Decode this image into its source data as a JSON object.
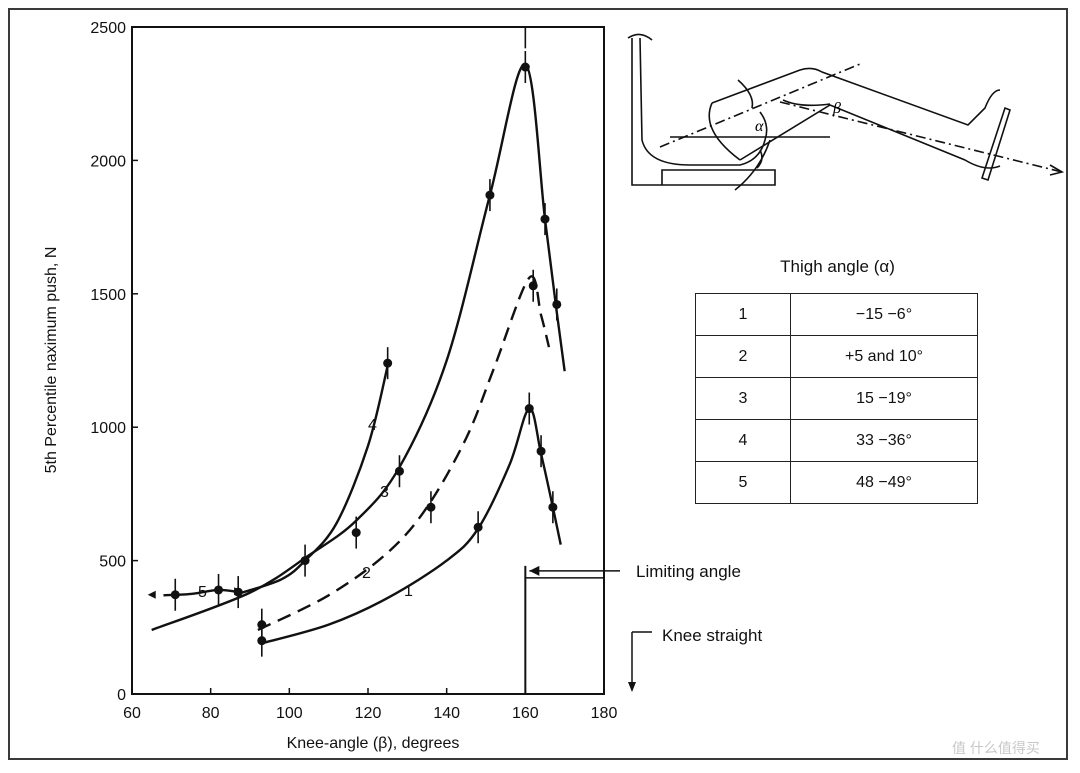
{
  "chart_data": {
    "type": "line",
    "xlabel": "Knee-angle (β), degrees",
    "ylabel": "5th Percentile naximum push, N",
    "xlim": [
      60,
      180
    ],
    "ylim": [
      0,
      2500
    ],
    "x_ticks": [
      "60",
      "80",
      "100",
      "120",
      "140",
      "160",
      "180"
    ],
    "y_ticks": [
      "0",
      "500",
      "1000",
      "1500",
      "2000",
      "2500"
    ],
    "x_tick_values": [
      60,
      80,
      100,
      120,
      140,
      160,
      180
    ],
    "y_tick_values": [
      0,
      500,
      1000,
      1500,
      2000,
      2500
    ],
    "series": [
      {
        "name": "1",
        "curve": [
          [
            93,
            190
          ],
          [
            110,
            260
          ],
          [
            125,
            360
          ],
          [
            140,
            500
          ],
          [
            148,
            620
          ],
          [
            156,
            860
          ],
          [
            161,
            1070
          ],
          [
            164,
            900
          ],
          [
            167,
            700
          ],
          [
            169,
            560
          ]
        ],
        "points": [
          [
            93,
            200
          ],
          [
            148,
            625
          ],
          [
            161,
            1070
          ],
          [
            164,
            910
          ],
          [
            167,
            700
          ]
        ],
        "dashed": false
      },
      {
        "name": "2",
        "curve": [
          [
            92,
            240
          ],
          [
            110,
            370
          ],
          [
            125,
            530
          ],
          [
            135,
            700
          ],
          [
            145,
            960
          ],
          [
            152,
            1220
          ],
          [
            161,
            1560
          ],
          [
            164,
            1420
          ],
          [
            166,
            1300
          ]
        ],
        "points": [
          [
            93,
            260
          ],
          [
            136,
            700
          ],
          [
            162,
            1530
          ]
        ],
        "dashed": true
      },
      {
        "name": "3",
        "curve": [
          [
            65,
            240
          ],
          [
            90,
            380
          ],
          [
            105,
            520
          ],
          [
            117,
            650
          ],
          [
            128,
            850
          ],
          [
            140,
            1250
          ],
          [
            151,
            1870
          ],
          [
            160,
            2360
          ],
          [
            165,
            1780
          ],
          [
            168,
            1430
          ],
          [
            170,
            1210
          ]
        ],
        "points": [
          [
            117,
            605
          ],
          [
            128,
            835
          ],
          [
            151,
            1870
          ],
          [
            160,
            2350
          ],
          [
            165,
            1780
          ],
          [
            168,
            1460
          ]
        ],
        "dashed": false
      },
      {
        "name": "4",
        "curve": [
          [
            88,
            380
          ],
          [
            98,
            430
          ],
          [
            104,
            500
          ],
          [
            112,
            640
          ],
          [
            120,
            930
          ],
          [
            125,
            1230
          ]
        ],
        "points": [
          [
            104,
            500
          ],
          [
            125,
            1240
          ]
        ],
        "dashed": false
      },
      {
        "name": "5",
        "curve": [
          [
            68,
            370
          ],
          [
            75,
            375
          ],
          [
            82,
            390
          ],
          [
            88,
            380
          ]
        ],
        "points": [
          [
            71,
            372
          ],
          [
            82,
            390
          ],
          [
            87,
            382
          ]
        ],
        "dashed": false
      }
    ],
    "annotations": [
      "Limiting angle",
      "Knee straight"
    ],
    "limiting_angle_x": 160,
    "limiting_angle_y": 480,
    "knee_straight_x": 186,
    "knee_straight_y": 200,
    "grid": false
  },
  "legend_table": {
    "title": "Thigh angle (α)",
    "rows": [
      {
        "id": "1",
        "range": "−15 −6°"
      },
      {
        "id": "2",
        "range": "+5 and 10°"
      },
      {
        "id": "3",
        "range": "15 −19°"
      },
      {
        "id": "4",
        "range": "33 −36°"
      },
      {
        "id": "5",
        "range": "48 −49°"
      }
    ]
  },
  "diagram": {
    "alpha_label": "α",
    "beta_label": "β"
  },
  "watermark": "值 什么值得买"
}
